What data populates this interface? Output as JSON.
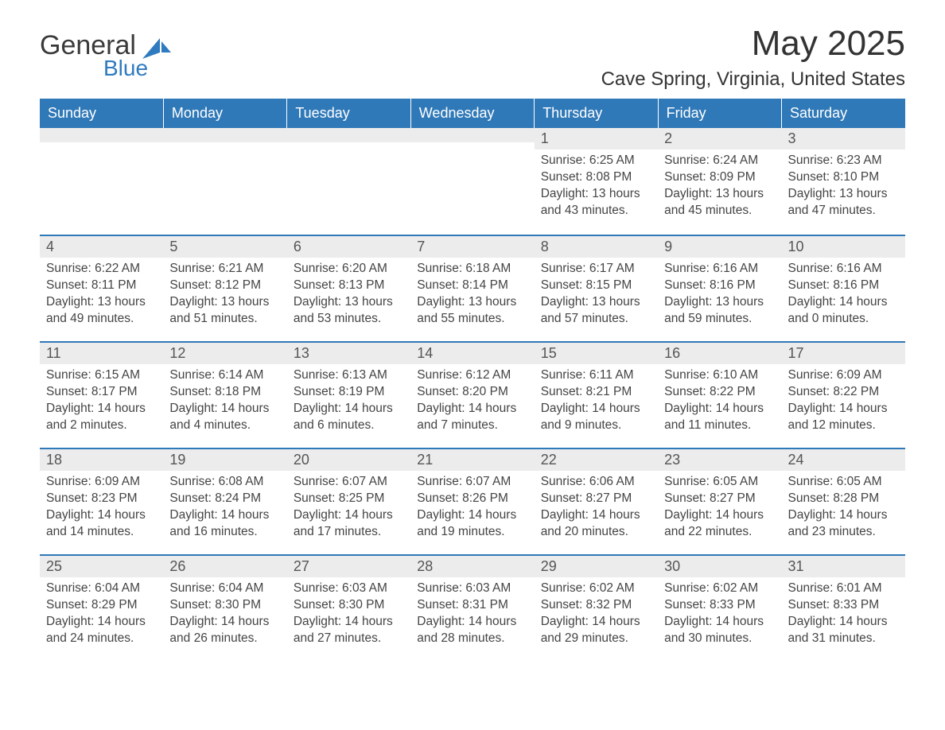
{
  "logo": {
    "text_general": "General",
    "text_blue": "Blue"
  },
  "colors": {
    "header_bg": "#3079b8",
    "header_text": "#ffffff",
    "daynum_bg": "#ececec",
    "week_border": "#3079b8",
    "body_text": "#444444",
    "title_text": "#333333",
    "page_bg": "#ffffff"
  },
  "typography": {
    "month_title_fontsize": 44,
    "location_fontsize": 24,
    "dayheader_fontsize": 18,
    "daynum_fontsize": 18,
    "content_fontsize": 15.5
  },
  "title": "May 2025",
  "location": "Cave Spring, Virginia, United States",
  "day_headers": [
    "Sunday",
    "Monday",
    "Tuesday",
    "Wednesday",
    "Thursday",
    "Friday",
    "Saturday"
  ],
  "weeks": [
    [
      null,
      null,
      null,
      null,
      {
        "day": "1",
        "sunrise": "Sunrise: 6:25 AM",
        "sunset": "Sunset: 8:08 PM",
        "daylight1": "Daylight: 13 hours",
        "daylight2": "and 43 minutes."
      },
      {
        "day": "2",
        "sunrise": "Sunrise: 6:24 AM",
        "sunset": "Sunset: 8:09 PM",
        "daylight1": "Daylight: 13 hours",
        "daylight2": "and 45 minutes."
      },
      {
        "day": "3",
        "sunrise": "Sunrise: 6:23 AM",
        "sunset": "Sunset: 8:10 PM",
        "daylight1": "Daylight: 13 hours",
        "daylight2": "and 47 minutes."
      }
    ],
    [
      {
        "day": "4",
        "sunrise": "Sunrise: 6:22 AM",
        "sunset": "Sunset: 8:11 PM",
        "daylight1": "Daylight: 13 hours",
        "daylight2": "and 49 minutes."
      },
      {
        "day": "5",
        "sunrise": "Sunrise: 6:21 AM",
        "sunset": "Sunset: 8:12 PM",
        "daylight1": "Daylight: 13 hours",
        "daylight2": "and 51 minutes."
      },
      {
        "day": "6",
        "sunrise": "Sunrise: 6:20 AM",
        "sunset": "Sunset: 8:13 PM",
        "daylight1": "Daylight: 13 hours",
        "daylight2": "and 53 minutes."
      },
      {
        "day": "7",
        "sunrise": "Sunrise: 6:18 AM",
        "sunset": "Sunset: 8:14 PM",
        "daylight1": "Daylight: 13 hours",
        "daylight2": "and 55 minutes."
      },
      {
        "day": "8",
        "sunrise": "Sunrise: 6:17 AM",
        "sunset": "Sunset: 8:15 PM",
        "daylight1": "Daylight: 13 hours",
        "daylight2": "and 57 minutes."
      },
      {
        "day": "9",
        "sunrise": "Sunrise: 6:16 AM",
        "sunset": "Sunset: 8:16 PM",
        "daylight1": "Daylight: 13 hours",
        "daylight2": "and 59 minutes."
      },
      {
        "day": "10",
        "sunrise": "Sunrise: 6:16 AM",
        "sunset": "Sunset: 8:16 PM",
        "daylight1": "Daylight: 14 hours",
        "daylight2": "and 0 minutes."
      }
    ],
    [
      {
        "day": "11",
        "sunrise": "Sunrise: 6:15 AM",
        "sunset": "Sunset: 8:17 PM",
        "daylight1": "Daylight: 14 hours",
        "daylight2": "and 2 minutes."
      },
      {
        "day": "12",
        "sunrise": "Sunrise: 6:14 AM",
        "sunset": "Sunset: 8:18 PM",
        "daylight1": "Daylight: 14 hours",
        "daylight2": "and 4 minutes."
      },
      {
        "day": "13",
        "sunrise": "Sunrise: 6:13 AM",
        "sunset": "Sunset: 8:19 PM",
        "daylight1": "Daylight: 14 hours",
        "daylight2": "and 6 minutes."
      },
      {
        "day": "14",
        "sunrise": "Sunrise: 6:12 AM",
        "sunset": "Sunset: 8:20 PM",
        "daylight1": "Daylight: 14 hours",
        "daylight2": "and 7 minutes."
      },
      {
        "day": "15",
        "sunrise": "Sunrise: 6:11 AM",
        "sunset": "Sunset: 8:21 PM",
        "daylight1": "Daylight: 14 hours",
        "daylight2": "and 9 minutes."
      },
      {
        "day": "16",
        "sunrise": "Sunrise: 6:10 AM",
        "sunset": "Sunset: 8:22 PM",
        "daylight1": "Daylight: 14 hours",
        "daylight2": "and 11 minutes."
      },
      {
        "day": "17",
        "sunrise": "Sunrise: 6:09 AM",
        "sunset": "Sunset: 8:22 PM",
        "daylight1": "Daylight: 14 hours",
        "daylight2": "and 12 minutes."
      }
    ],
    [
      {
        "day": "18",
        "sunrise": "Sunrise: 6:09 AM",
        "sunset": "Sunset: 8:23 PM",
        "daylight1": "Daylight: 14 hours",
        "daylight2": "and 14 minutes."
      },
      {
        "day": "19",
        "sunrise": "Sunrise: 6:08 AM",
        "sunset": "Sunset: 8:24 PM",
        "daylight1": "Daylight: 14 hours",
        "daylight2": "and 16 minutes."
      },
      {
        "day": "20",
        "sunrise": "Sunrise: 6:07 AM",
        "sunset": "Sunset: 8:25 PM",
        "daylight1": "Daylight: 14 hours",
        "daylight2": "and 17 minutes."
      },
      {
        "day": "21",
        "sunrise": "Sunrise: 6:07 AM",
        "sunset": "Sunset: 8:26 PM",
        "daylight1": "Daylight: 14 hours",
        "daylight2": "and 19 minutes."
      },
      {
        "day": "22",
        "sunrise": "Sunrise: 6:06 AM",
        "sunset": "Sunset: 8:27 PM",
        "daylight1": "Daylight: 14 hours",
        "daylight2": "and 20 minutes."
      },
      {
        "day": "23",
        "sunrise": "Sunrise: 6:05 AM",
        "sunset": "Sunset: 8:27 PM",
        "daylight1": "Daylight: 14 hours",
        "daylight2": "and 22 minutes."
      },
      {
        "day": "24",
        "sunrise": "Sunrise: 6:05 AM",
        "sunset": "Sunset: 8:28 PM",
        "daylight1": "Daylight: 14 hours",
        "daylight2": "and 23 minutes."
      }
    ],
    [
      {
        "day": "25",
        "sunrise": "Sunrise: 6:04 AM",
        "sunset": "Sunset: 8:29 PM",
        "daylight1": "Daylight: 14 hours",
        "daylight2": "and 24 minutes."
      },
      {
        "day": "26",
        "sunrise": "Sunrise: 6:04 AM",
        "sunset": "Sunset: 8:30 PM",
        "daylight1": "Daylight: 14 hours",
        "daylight2": "and 26 minutes."
      },
      {
        "day": "27",
        "sunrise": "Sunrise: 6:03 AM",
        "sunset": "Sunset: 8:30 PM",
        "daylight1": "Daylight: 14 hours",
        "daylight2": "and 27 minutes."
      },
      {
        "day": "28",
        "sunrise": "Sunrise: 6:03 AM",
        "sunset": "Sunset: 8:31 PM",
        "daylight1": "Daylight: 14 hours",
        "daylight2": "and 28 minutes."
      },
      {
        "day": "29",
        "sunrise": "Sunrise: 6:02 AM",
        "sunset": "Sunset: 8:32 PM",
        "daylight1": "Daylight: 14 hours",
        "daylight2": "and 29 minutes."
      },
      {
        "day": "30",
        "sunrise": "Sunrise: 6:02 AM",
        "sunset": "Sunset: 8:33 PM",
        "daylight1": "Daylight: 14 hours",
        "daylight2": "and 30 minutes."
      },
      {
        "day": "31",
        "sunrise": "Sunrise: 6:01 AM",
        "sunset": "Sunset: 8:33 PM",
        "daylight1": "Daylight: 14 hours",
        "daylight2": "and 31 minutes."
      }
    ]
  ]
}
